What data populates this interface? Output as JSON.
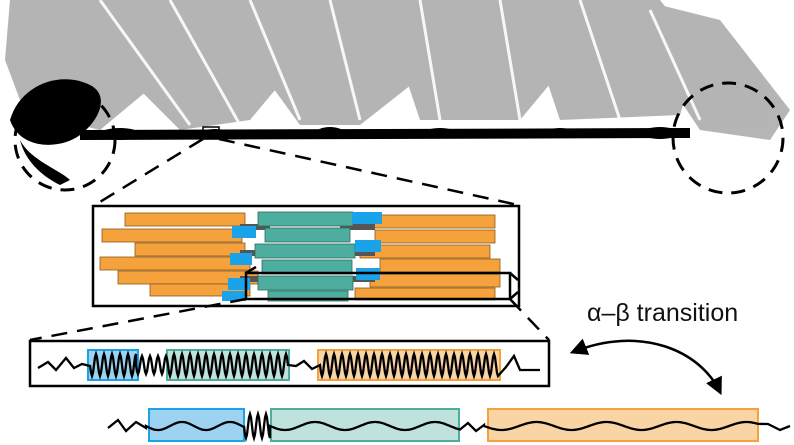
{
  "labels": {
    "transition": "α–β transition"
  },
  "colors": {
    "fiber_core": "#000000",
    "fiber_haze": "#a8a8a8",
    "orange_segment": "#f5a23c",
    "orange_fill_light": "#f9d4a4",
    "teal_segment": "#4daea0",
    "teal_fill_light": "#bfe2dc",
    "blue_segment": "#1aa3e8",
    "blue_fill_light": "#9dd2f1",
    "outline": "#000000"
  },
  "icons": {
    "transition_arrow": "double-headed-curved-arrow-icon"
  }
}
